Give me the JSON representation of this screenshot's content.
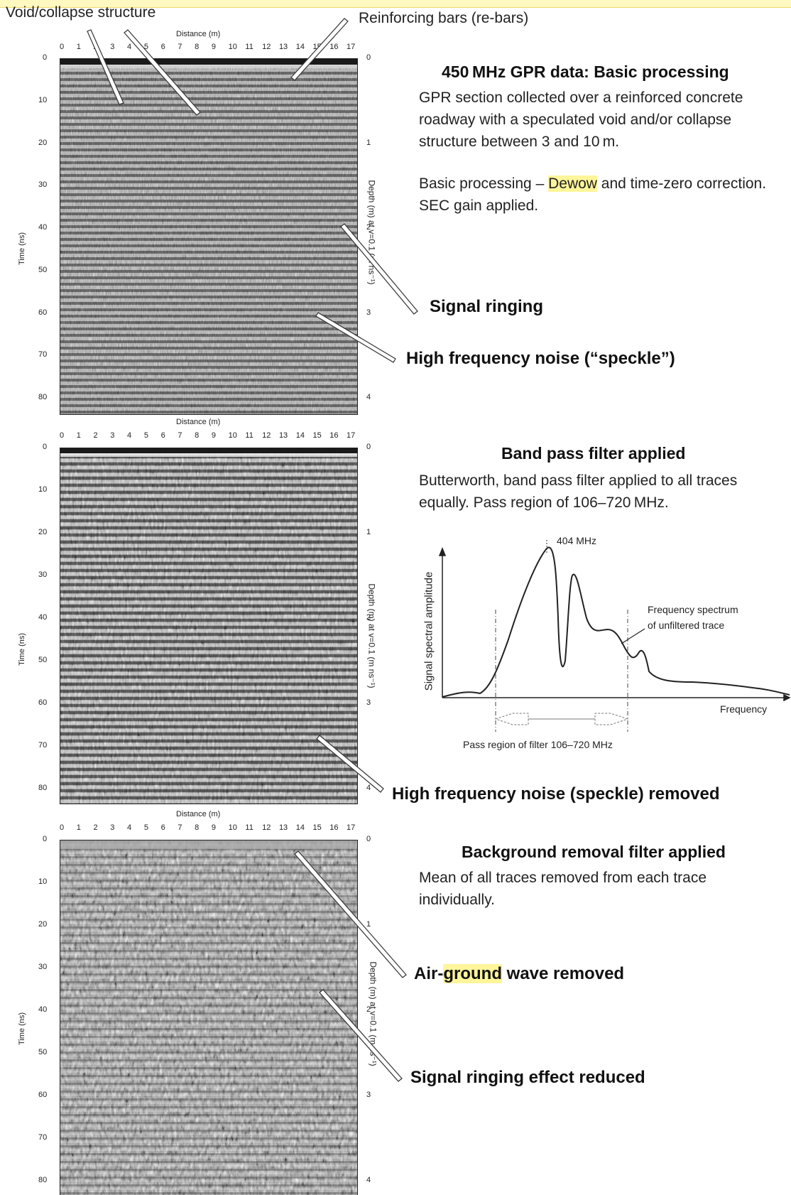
{
  "top_labels": {
    "left": "Void/collapse structure",
    "right": "Reinforcing bars (re-bars)"
  },
  "axes": {
    "distance_title": "Distance (m)",
    "time_title": "Time (ns)",
    "depth_title": "Depth (m) at v=0.1 (m ns⁻¹)",
    "distance_ticks": [
      "0",
      "1",
      "2",
      "3",
      "4",
      "5",
      "6",
      "7",
      "8",
      "9",
      "10",
      "11",
      "12",
      "13",
      "14",
      "15",
      "16",
      "17"
    ],
    "time_ticks": [
      "0",
      "10",
      "20",
      "30",
      "40",
      "50",
      "60",
      "70",
      "80"
    ],
    "depth_ticks": [
      "0",
      "1",
      "2",
      "3",
      "4"
    ]
  },
  "panel1": {
    "title": "450 MHz GPR data: Basic processing",
    "desc": "GPR section collected over a reinforced concrete roadway with a speculated void and/or collapse structure between 3 and 10 m.",
    "proc_prefix": "Basic processing – ",
    "proc_highlight": "Dewow",
    "proc_suffix": " and time-zero correction. SEC gain applied.",
    "callout_ringing": "Signal ringing",
    "callout_noise": "High frequency noise (“speckle”)"
  },
  "panel2": {
    "title": "Band pass filter applied",
    "desc": "Butterworth, band pass filter applied to all traces equally. Pass region of 106–720 MHz.",
    "callout_noise": "High frequency noise (speckle) removed"
  },
  "spectrum": {
    "peak_label": "404 MHz",
    "ylabel": "Signal spectral amplitude",
    "xlabel": "Frequency",
    "curve_label_1": "Frequency spectrum",
    "curve_label_2": "of unfiltered trace",
    "pass_label": "Pass region of filter 106–720 MHz"
  },
  "panel3": {
    "title": "Background removal filter applied",
    "desc": "Mean of all traces removed from each trace individually.",
    "callout_air_prefix": "Air-",
    "callout_air_highlight": "ground",
    "callout_air_suffix": " wave removed",
    "callout_ringing": "Signal ringing effect reduced"
  }
}
